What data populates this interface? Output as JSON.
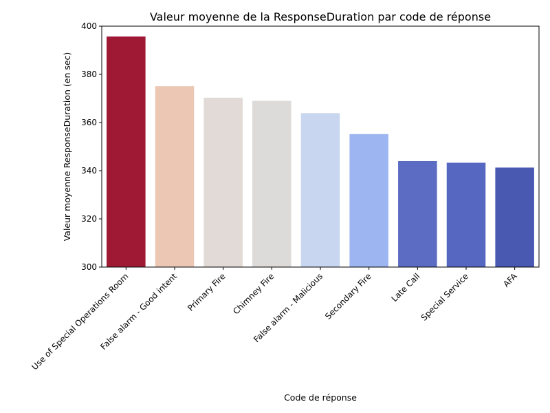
{
  "chart_data": {
    "type": "bar",
    "title": "Valeur moyenne de la ResponseDuration par code de réponse",
    "xlabel": "Code de réponse",
    "ylabel": "Valeur moyenne ResponseDuration (en sec)",
    "ylim": [
      300,
      400
    ],
    "yticks": [
      300,
      320,
      340,
      360,
      380,
      400
    ],
    "grid": false,
    "categories": [
      "Use of Special Operations Room",
      "False alarm - Good intent",
      "Primary Fire",
      "Chimney Fire",
      "False alarm - Malicious",
      "Secondary Fire",
      "Late Call",
      "Special Service",
      "AFA"
    ],
    "values": [
      395.7,
      375.1,
      370.3,
      369.0,
      363.9,
      355.2,
      344.0,
      343.3,
      341.3
    ],
    "colors": [
      "#9f1834",
      "#ecc8b4",
      "#e2dad6",
      "#dcdbda",
      "#c8d6ef",
      "#9db6f1",
      "#5b6cc2",
      "#5667c1",
      "#4958b0"
    ]
  }
}
